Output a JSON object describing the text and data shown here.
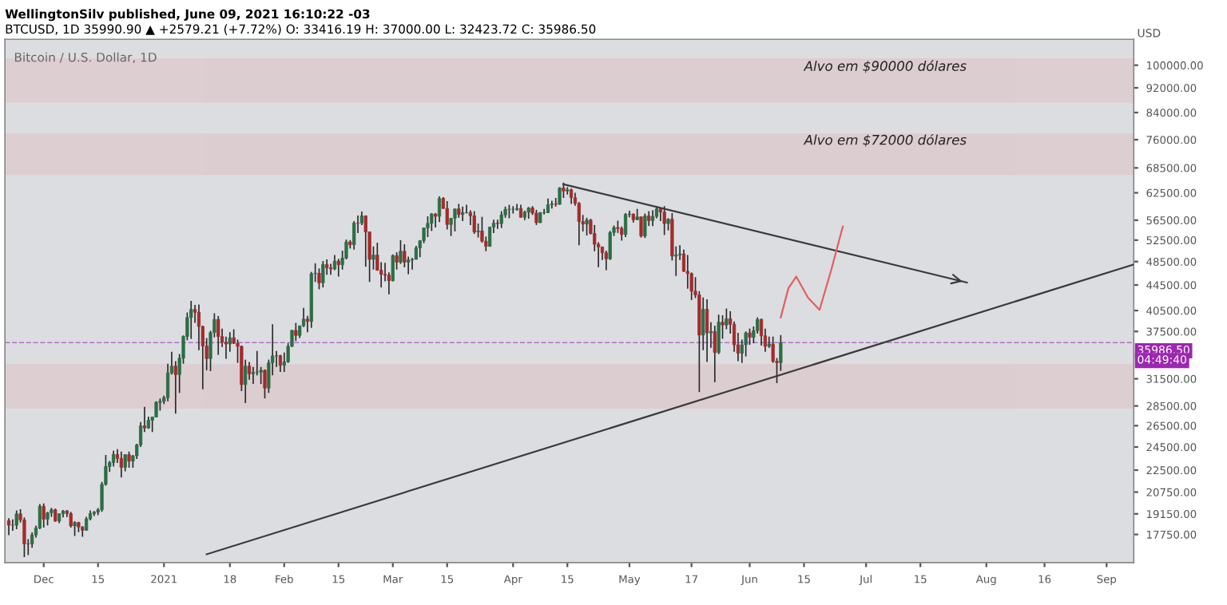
{
  "chart_data": {
    "type": "candlestick",
    "title": "Bitcoin / U.S. Dollar, 1D",
    "ylabel": "USD",
    "annotations": [
      "WellingtonSilv published, June 09, 2021 16:10:22 -03",
      "BTCUSD, 1D 35990.90 ▲ +2579.21 (+7.72%) O: 33416.19 H: 37000.00 L: 32423.72 C: 35986.50",
      "04:49:40"
    ],
    "x": [
      "2020-11-22",
      "2020-11-23",
      "2020-11-24",
      "2020-11-25",
      "2020-11-26",
      "2020-11-27",
      "2020-11-28",
      "2020-11-29",
      "2020-11-30",
      "2020-12-01",
      "2020-12-02",
      "2020-12-03",
      "2020-12-04",
      "2020-12-05",
      "2020-12-06",
      "2020-12-07",
      "2020-12-08",
      "2020-12-09",
      "2020-12-10",
      "2020-12-11",
      "2020-12-12",
      "2020-12-13",
      "2020-12-14",
      "2020-12-15",
      "2020-12-16",
      "2020-12-17",
      "2020-12-18",
      "2020-12-19",
      "2020-12-20",
      "2020-12-21",
      "2020-12-22",
      "2020-12-23",
      "2020-12-24",
      "2020-12-25",
      "2020-12-26",
      "2020-12-27",
      "2020-12-28",
      "2020-12-29",
      "2020-12-30",
      "2020-12-31",
      "2021-01-01",
      "2021-01-02",
      "2021-01-03",
      "2021-01-04",
      "2021-01-05",
      "2021-01-06",
      "2021-01-07",
      "2021-01-08",
      "2021-01-09",
      "2021-01-10",
      "2021-01-11",
      "2021-01-12",
      "2021-01-13",
      "2021-01-14",
      "2021-01-15",
      "2021-01-16",
      "2021-01-17",
      "2021-01-18",
      "2021-01-19",
      "2021-01-20",
      "2021-01-21",
      "2021-01-22",
      "2021-01-23",
      "2021-01-24",
      "2021-01-25",
      "2021-01-26",
      "2021-01-27",
      "2021-01-28",
      "2021-01-29",
      "2021-01-30",
      "2021-01-31",
      "2021-02-01",
      "2021-02-02",
      "2021-02-03",
      "2021-02-04",
      "2021-02-05",
      "2021-02-06",
      "2021-02-07",
      "2021-02-08",
      "2021-02-09",
      "2021-02-10",
      "2021-02-11",
      "2021-02-12",
      "2021-02-13",
      "2021-02-14",
      "2021-02-15",
      "2021-02-16",
      "2021-02-17",
      "2021-02-18",
      "2021-02-19",
      "2021-02-20",
      "2021-02-21",
      "2021-02-22",
      "2021-02-23",
      "2021-02-24",
      "2021-02-25",
      "2021-02-26",
      "2021-02-27",
      "2021-02-28",
      "2021-03-01",
      "2021-03-02",
      "2021-03-03",
      "2021-03-04",
      "2021-03-05",
      "2021-03-06",
      "2021-03-07",
      "2021-03-08",
      "2021-03-09",
      "2021-03-10",
      "2021-03-11",
      "2021-03-12",
      "2021-03-13",
      "2021-03-14",
      "2021-03-15",
      "2021-03-16",
      "2021-03-17",
      "2021-03-18",
      "2021-03-19",
      "2021-03-20",
      "2021-03-21",
      "2021-03-22",
      "2021-03-23",
      "2021-03-24",
      "2021-03-25",
      "2021-03-26",
      "2021-03-27",
      "2021-03-28",
      "2021-03-29",
      "2021-03-30",
      "2021-03-31",
      "2021-04-01",
      "2021-04-02",
      "2021-04-03",
      "2021-04-04",
      "2021-04-05",
      "2021-04-06",
      "2021-04-07",
      "2021-04-08",
      "2021-04-09",
      "2021-04-10",
      "2021-04-11",
      "2021-04-12",
      "2021-04-13",
      "2021-04-14",
      "2021-04-15",
      "2021-04-16",
      "2021-04-17",
      "2021-04-18",
      "2021-04-19",
      "2021-04-20",
      "2021-04-21",
      "2021-04-22",
      "2021-04-23",
      "2021-04-24",
      "2021-04-25",
      "2021-04-26",
      "2021-04-27",
      "2021-04-28",
      "2021-04-29",
      "2021-04-30",
      "2021-05-01",
      "2021-05-02",
      "2021-05-03",
      "2021-05-04",
      "2021-05-05",
      "2021-05-06",
      "2021-05-07",
      "2021-05-08",
      "2021-05-09",
      "2021-05-10",
      "2021-05-11",
      "2021-05-12",
      "2021-05-13",
      "2021-05-14",
      "2021-05-15",
      "2021-05-16",
      "2021-05-17",
      "2021-05-18",
      "2021-05-19",
      "2021-05-20",
      "2021-05-21",
      "2021-05-22",
      "2021-05-23",
      "2021-05-24",
      "2021-05-25",
      "2021-05-26",
      "2021-05-27",
      "2021-05-28",
      "2021-05-29",
      "2021-05-30",
      "2021-05-31",
      "2021-06-01",
      "2021-06-02",
      "2021-06-03",
      "2021-06-04",
      "2021-06-05",
      "2021-06-06",
      "2021-06-07",
      "2021-06-08",
      "2021-06-09"
    ],
    "ohlc": [
      [
        18680,
        18850,
        17700,
        18370
      ],
      [
        18370,
        18760,
        18000,
        18370
      ],
      [
        18370,
        19400,
        18100,
        19150
      ],
      [
        19150,
        19480,
        18550,
        18730
      ],
      [
        18730,
        18900,
        16330,
        17150
      ],
      [
        17150,
        17450,
        16450,
        17140
      ],
      [
        17140,
        17890,
        16900,
        17720
      ],
      [
        17720,
        18340,
        17550,
        18180
      ],
      [
        18180,
        19850,
        18100,
        19700
      ],
      [
        19700,
        19900,
        18200,
        18780
      ],
      [
        18780,
        19300,
        18350,
        19220
      ],
      [
        19220,
        19580,
        18950,
        19440
      ],
      [
        19440,
        19520,
        18600,
        18650
      ],
      [
        18650,
        19180,
        18500,
        19150
      ],
      [
        19150,
        19420,
        18900,
        19360
      ],
      [
        19360,
        19420,
        18930,
        19170
      ],
      [
        19170,
        19300,
        18200,
        18320
      ],
      [
        18320,
        18640,
        17650,
        18550
      ],
      [
        18550,
        18600,
        17900,
        18250
      ],
      [
        18250,
        18300,
        17600,
        18030
      ],
      [
        18030,
        18950,
        18000,
        18800
      ],
      [
        18800,
        19400,
        18700,
        19170
      ],
      [
        19170,
        19350,
        19000,
        19270
      ],
      [
        19270,
        19560,
        19050,
        19440
      ],
      [
        19440,
        21550,
        19300,
        21350
      ],
      [
        21350,
        23800,
        21250,
        22800
      ],
      [
        22800,
        23280,
        22350,
        23130
      ],
      [
        23130,
        24170,
        22800,
        23840
      ],
      [
        23840,
        24300,
        23100,
        23480
      ],
      [
        23480,
        24100,
        21900,
        22730
      ],
      [
        22730,
        23840,
        22400,
        23820
      ],
      [
        23820,
        24100,
        22700,
        23250
      ],
      [
        23250,
        23800,
        22700,
        23720
      ],
      [
        23720,
        24790,
        23450,
        24690
      ],
      [
        24690,
        26870,
        24500,
        26490
      ],
      [
        26490,
        28400,
        25900,
        26280
      ],
      [
        26280,
        27400,
        26200,
        27030
      ],
      [
        27030,
        27400,
        25900,
        27360
      ],
      [
        27360,
        28990,
        27340,
        28880
      ],
      [
        28880,
        29300,
        28000,
        28990
      ],
      [
        28990,
        29600,
        28700,
        29380
      ],
      [
        29380,
        33300,
        29000,
        32200
      ],
      [
        32200,
        34800,
        32000,
        33000
      ],
      [
        33000,
        33600,
        27700,
        31990
      ],
      [
        31990,
        34500,
        29900,
        33990
      ],
      [
        33990,
        36950,
        33300,
        36820
      ],
      [
        36820,
        40200,
        36300,
        39470
      ],
      [
        39470,
        41950,
        36500,
        40670
      ],
      [
        40670,
        41350,
        38700,
        40240
      ],
      [
        40240,
        41400,
        35000,
        38200
      ],
      [
        38200,
        38300,
        30300,
        35550
      ],
      [
        35550,
        36600,
        32500,
        33920
      ],
      [
        33920,
        37600,
        32400,
        37340
      ],
      [
        37340,
        40100,
        36700,
        39200
      ],
      [
        39200,
        39700,
        34400,
        36800
      ],
      [
        36800,
        37900,
        35400,
        36030
      ],
      [
        36030,
        36800,
        33900,
        35800
      ],
      [
        35800,
        37400,
        34800,
        36640
      ],
      [
        36640,
        37800,
        35800,
        35900
      ],
      [
        35900,
        36400,
        33400,
        35500
      ],
      [
        35500,
        35600,
        30100,
        30830
      ],
      [
        30830,
        33800,
        28800,
        33000
      ],
      [
        33000,
        33500,
        31400,
        32080
      ],
      [
        32080,
        32900,
        30900,
        32270
      ],
      [
        32270,
        34900,
        31900,
        32280
      ],
      [
        32280,
        32900,
        30900,
        32500
      ],
      [
        32500,
        32600,
        29300,
        30430
      ],
      [
        30430,
        33800,
        29900,
        33400
      ],
      [
        33400,
        38500,
        31900,
        34270
      ],
      [
        34270,
        34900,
        32900,
        34300
      ],
      [
        34300,
        34400,
        32300,
        33100
      ],
      [
        33100,
        34700,
        32300,
        33540
      ],
      [
        33540,
        35900,
        33400,
        35500
      ],
      [
        35500,
        37700,
        35400,
        37650
      ],
      [
        37650,
        38700,
        36200,
        36950
      ],
      [
        36950,
        38300,
        36600,
        38290
      ],
      [
        38290,
        40900,
        38100,
        39250
      ],
      [
        39250,
        39700,
        37400,
        38900
      ],
      [
        38900,
        46700,
        38000,
        46400
      ],
      [
        46400,
        48200,
        45000,
        46480
      ],
      [
        46480,
        47300,
        43800,
        44840
      ],
      [
        44840,
        48600,
        44100,
        47980
      ],
      [
        47980,
        48900,
        46200,
        47400
      ],
      [
        47400,
        48100,
        46200,
        47200
      ],
      [
        47200,
        49700,
        47000,
        48600
      ],
      [
        48600,
        49000,
        45900,
        47950
      ],
      [
        47950,
        50500,
        47100,
        49150
      ],
      [
        49150,
        52600,
        48900,
        52150
      ],
      [
        52150,
        52500,
        50900,
        51600
      ],
      [
        51600,
        56300,
        50700,
        55900
      ],
      [
        55900,
        57500,
        53900,
        55880
      ],
      [
        55880,
        58350,
        55500,
        57400
      ],
      [
        57400,
        57500,
        47600,
        54100
      ],
      [
        54100,
        54200,
        45000,
        48900
      ],
      [
        48900,
        51300,
        47100,
        49700
      ],
      [
        49700,
        52000,
        46900,
        47000
      ],
      [
        47000,
        48400,
        44100,
        46300
      ],
      [
        46300,
        48300,
        45100,
        46150
      ],
      [
        46150,
        46600,
        43000,
        45200
      ],
      [
        45200,
        49800,
        45100,
        49600
      ],
      [
        49600,
        50200,
        47100,
        48400
      ],
      [
        48400,
        52500,
        48100,
        50400
      ],
      [
        50400,
        51700,
        47500,
        48400
      ],
      [
        48400,
        49400,
        46300,
        48800
      ],
      [
        48800,
        49200,
        47100,
        48900
      ],
      [
        48900,
        51400,
        48900,
        51000
      ],
      [
        51000,
        52400,
        49300,
        52400
      ],
      [
        52400,
        54900,
        51900,
        54900
      ],
      [
        54900,
        57300,
        53100,
        55850
      ],
      [
        55850,
        58000,
        54300,
        57800
      ],
      [
        57800,
        58000,
        55000,
        57300
      ],
      [
        57300,
        61700,
        56100,
        61200
      ],
      [
        61200,
        61500,
        58900,
        59000
      ],
      [
        59000,
        60600,
        54600,
        55600
      ],
      [
        55600,
        56900,
        53300,
        56900
      ],
      [
        56900,
        58900,
        54200,
        58900
      ],
      [
        58900,
        60000,
        57000,
        57700
      ],
      [
        57700,
        59400,
        56300,
        58100
      ],
      [
        58100,
        59800,
        57900,
        58100
      ],
      [
        58100,
        58600,
        55500,
        57400
      ],
      [
        57400,
        58400,
        53700,
        54100
      ],
      [
        54100,
        55800,
        53000,
        54300
      ],
      [
        54300,
        57200,
        52000,
        52300
      ],
      [
        52300,
        53200,
        50400,
        51300
      ],
      [
        51300,
        55100,
        51300,
        55100
      ],
      [
        55100,
        56600,
        53900,
        55900
      ],
      [
        55900,
        56600,
        54700,
        55800
      ],
      [
        55800,
        58400,
        54900,
        57600
      ],
      [
        57600,
        59400,
        57000,
        58800
      ],
      [
        58800,
        59800,
        56900,
        58800
      ],
      [
        58800,
        59500,
        57900,
        58800
      ],
      [
        58800,
        60000,
        58500,
        59000
      ],
      [
        59000,
        59800,
        57000,
        57100
      ],
      [
        57100,
        58500,
        56500,
        58200
      ],
      [
        58200,
        59300,
        56800,
        59100
      ],
      [
        59100,
        59500,
        57600,
        58000
      ],
      [
        58000,
        58700,
        55500,
        56000
      ],
      [
        56000,
        58200,
        55900,
        58100
      ],
      [
        58100,
        58900,
        57700,
        58100
      ],
      [
        58100,
        61200,
        58000,
        59800
      ],
      [
        59800,
        60700,
        59000,
        60000
      ],
      [
        60000,
        61300,
        59400,
        59900
      ],
      [
        59900,
        63800,
        59800,
        63600
      ],
      [
        63600,
        64900,
        61300,
        62900
      ],
      [
        62900,
        63800,
        62100,
        63200
      ],
      [
        63200,
        63500,
        60000,
        61400
      ],
      [
        61400,
        62500,
        59600,
        60100
      ],
      [
        60100,
        60400,
        51500,
        56200
      ],
      [
        56200,
        57600,
        54200,
        55700
      ],
      [
        55700,
        57000,
        53400,
        56500
      ],
      [
        56500,
        56800,
        53600,
        53800
      ],
      [
        53800,
        55500,
        50400,
        51700
      ],
      [
        51700,
        52100,
        47500,
        51200
      ],
      [
        51200,
        51200,
        48800,
        50100
      ],
      [
        50100,
        50500,
        47000,
        49000
      ],
      [
        49000,
        54300,
        48800,
        54000
      ],
      [
        54000,
        55400,
        53300,
        55000
      ],
      [
        55000,
        56400,
        53900,
        54800
      ],
      [
        54800,
        55200,
        52400,
        53600
      ],
      [
        53600,
        58000,
        53100,
        57700
      ],
      [
        57700,
        58500,
        57100,
        57800
      ],
      [
        57800,
        57900,
        56000,
        56600
      ],
      [
        56600,
        58900,
        56500,
        57200
      ],
      [
        57200,
        57200,
        53000,
        53300
      ],
      [
        53300,
        57900,
        52900,
        57400
      ],
      [
        57400,
        58400,
        55300,
        56400
      ],
      [
        56400,
        58600,
        55300,
        57300
      ],
      [
        57300,
        59500,
        56900,
        58900
      ],
      [
        58900,
        59200,
        56300,
        58200
      ],
      [
        58200,
        59500,
        53500,
        55800
      ],
      [
        55800,
        56900,
        54400,
        56700
      ],
      [
        56700,
        58000,
        48700,
        49500
      ],
      [
        49500,
        51300,
        46000,
        49700
      ],
      [
        49700,
        51500,
        48800,
        49900
      ],
      [
        49900,
        50700,
        46700,
        46800
      ],
      [
        46800,
        49700,
        43900,
        46400
      ],
      [
        46400,
        46600,
        42100,
        43500
      ],
      [
        43500,
        45800,
        42400,
        42900
      ],
      [
        42900,
        43500,
        30000,
        37000
      ],
      [
        37000,
        42500,
        35000,
        40700
      ],
      [
        40700,
        42200,
        33500,
        37300
      ],
      [
        37300,
        38800,
        35300,
        37500
      ],
      [
        37500,
        38300,
        31100,
        34700
      ],
      [
        34700,
        39900,
        34500,
        38800
      ],
      [
        38800,
        39800,
        36500,
        38400
      ],
      [
        38400,
        40800,
        37800,
        39300
      ],
      [
        39300,
        40400,
        37200,
        38500
      ],
      [
        38500,
        38900,
        34800,
        35700
      ],
      [
        35700,
        37300,
        33600,
        34600
      ],
      [
        34600,
        36400,
        33400,
        35700
      ],
      [
        35700,
        37500,
        34200,
        37300
      ],
      [
        37300,
        37900,
        35700,
        36700
      ],
      [
        36700,
        38200,
        35900,
        37600
      ],
      [
        37600,
        39500,
        37200,
        39200
      ],
      [
        39200,
        39300,
        35600,
        36900
      ],
      [
        36900,
        37900,
        34800,
        35500
      ],
      [
        35500,
        36800,
        35300,
        35800
      ],
      [
        35800,
        36800,
        33400,
        33600
      ],
      [
        33600,
        34000,
        31000,
        33416.19
      ],
      [
        33416.19,
        37000,
        32423.72,
        35986.5
      ]
    ],
    "colors": [
      "#a32b2b",
      "#2b6e45",
      "#2b6e45",
      "#a32b2b",
      "#a32b2b",
      "#a32b2b",
      "#2b6e45",
      "#2b6e45",
      "#2b6e45",
      "#a32b2b",
      "#2b6e45",
      "#2b6e45",
      "#a32b2b",
      "#2b6e45",
      "#2b6e45",
      "#a32b2b",
      "#a32b2b",
      "#2b6e45",
      "#a32b2b",
      "#a32b2b",
      "#2b6e45",
      "#2b6e45",
      "#2b6e45",
      "#2b6e45",
      "#2b6e45",
      "#2b6e45",
      "#2b6e45",
      "#2b6e45",
      "#a32b2b",
      "#a32b2b",
      "#2b6e45",
      "#a32b2b",
      "#2b6e45",
      "#2b6e45",
      "#2b6e45",
      "#a32b2b",
      "#2b6e45",
      "#2b6e45",
      "#2b6e45",
      "#2b6e45",
      "#2b6e45",
      "#2b6e45",
      "#2b6e45",
      "#a32b2b",
      "#2b6e45",
      "#2b6e45",
      "#2b6e45",
      "#2b6e45",
      "#a32b2b",
      "#a32b2b",
      "#a32b2b",
      "#a32b2b",
      "#2b6e45",
      "#2b6e45",
      "#a32b2b",
      "#a32b2b",
      "#a32b2b",
      "#2b6e45",
      "#a32b2b",
      "#a32b2b",
      "#a32b2b",
      "#2b6e45",
      "#a32b2b",
      "#2b6e45",
      "#2b6e45",
      "#2b6e45",
      "#a32b2b",
      "#2b6e45",
      "#2b6e45",
      "#2b6e45",
      "#a32b2b",
      "#2b6e45",
      "#2b6e45",
      "#2b6e45",
      "#a32b2b",
      "#2b6e45",
      "#2b6e45",
      "#a32b2b",
      "#2b6e45",
      "#2b6e45",
      "#a32b2b",
      "#2b6e45",
      "#a32b2b",
      "#a32b2b",
      "#2b6e45",
      "#a32b2b",
      "#2b6e45",
      "#2b6e45",
      "#a32b2b",
      "#2b6e45",
      "#a32b2b",
      "#2b6e45",
      "#a32b2b",
      "#a32b2b",
      "#2b6e45",
      "#a32b2b",
      "#a32b2b",
      "#a32b2b",
      "#a32b2b",
      "#2b6e45",
      "#a32b2b",
      "#2b6e45",
      "#a32b2b",
      "#2b6e45",
      "#2b6e45",
      "#2b6e45",
      "#2b6e45",
      "#2b6e45",
      "#2b6e45",
      "#2b6e45",
      "#a32b2b",
      "#2b6e45",
      "#a32b2b",
      "#a32b2b",
      "#2b6e45",
      "#2b6e45",
      "#a32b2b",
      "#2b6e45",
      "#2b6e45",
      "#a32b2b",
      "#a32b2b",
      "#2b6e45",
      "#a32b2b",
      "#a32b2b",
      "#2b6e45",
      "#2b6e45",
      "#a32b2b",
      "#2b6e45",
      "#2b6e45",
      "#2b6e45",
      "#2b6e45",
      "#2b6e45",
      "#a32b2b",
      "#2b6e45",
      "#2b6e45",
      "#a32b2b",
      "#a32b2b",
      "#2b6e45",
      "#2b6e45",
      "#2b6e45",
      "#2b6e45",
      "#a32b2b",
      "#2b6e45",
      "#a32b2b",
      "#2b6e45",
      "#a32b2b",
      "#a32b2b",
      "#a32b2b",
      "#a32b2b",
      "#2b6e45",
      "#a32b2b",
      "#a32b2b",
      "#a32b2b",
      "#a32b2b",
      "#a32b2b",
      "#2b6e45",
      "#2b6e45",
      "#a32b2b",
      "#a32b2b",
      "#2b6e45",
      "#2b6e45",
      "#a32b2b",
      "#2b6e45",
      "#a32b2b",
      "#2b6e45",
      "#a32b2b",
      "#2b6e45",
      "#2b6e45",
      "#a32b2b",
      "#a32b2b",
      "#2b6e45",
      "#a32b2b",
      "#2b6e45",
      "#2b6e45",
      "#a32b2b",
      "#a32b2b",
      "#a32b2b",
      "#a32b2b",
      "#a32b2b",
      "#2b6e45",
      "#a32b2b",
      "#2b6e45",
      "#a32b2b",
      "#2b6e45",
      "#a32b2b",
      "#2b6e45",
      "#a32b2b",
      "#a32b2b",
      "#a32b2b",
      "#2b6e45",
      "#2b6e45",
      "#a32b2b",
      "#2b6e45",
      "#2b6e45",
      "#a32b2b",
      "#a32b2b",
      "#2b6e45",
      "#a32b2b",
      "#a32b2b",
      "#2b6e45"
    ],
    "series": [
      {
        "type": "line",
        "color": "#3a3a3a",
        "x": [
          "2021-04-14",
          "2021-07-27"
        ],
        "values": [
          64500,
          44900
        ]
      },
      {
        "type": "line",
        "color": "#3a3a3a",
        "x": [
          "2021-01-12",
          "2021-09-08"
        ],
        "values": [
          16500,
          48000
        ]
      },
      {
        "type": "line",
        "color": "#e06060",
        "x": [
          "2021-06-09",
          "2021-06-11",
          "2021-06-13",
          "2021-06-16",
          "2021-06-19",
          "2021-06-22",
          "2021-06-25"
        ],
        "values": [
          39500,
          44000,
          45900,
          42500,
          40600,
          47000,
          55200
        ]
      }
    ],
    "bands": [
      {
        "axis": "y",
        "from": 28330,
        "to": 33100,
        "color": "#e06060"
      },
      {
        "axis": "y",
        "from": 67000,
        "to": 77450,
        "label": "Alvo em $72000 dólares",
        "color": "#e06060"
      },
      {
        "axis": "y",
        "from": 87500,
        "to": 102200,
        "label": "Alvo em $90000 dólares",
        "color": "#e06060"
      }
    ],
    "ref_lines": [
      {
        "axis": "y",
        "value": 35986.5,
        "label": "35986.50",
        "color": "#9c27b0",
        "line_style": "dashed"
      }
    ],
    "log": "y",
    "grid": false,
    "xlim": [
      "2020-11-21",
      "2021-09-08"
    ],
    "xticks": [
      {
        "value": "2020-12-01",
        "label": "Dec"
      },
      {
        "value": "2020-12-15",
        "label": "15"
      },
      {
        "value": "2021-01-01",
        "label": "2021"
      },
      {
        "value": "2021-01-18",
        "label": "18"
      },
      {
        "value": "2021-02-01",
        "label": "Feb"
      },
      {
        "value": "2021-02-15",
        "label": "15"
      },
      {
        "value": "2021-03-01",
        "label": "Mar"
      },
      {
        "value": "2021-03-15",
        "label": "15"
      },
      {
        "value": "2021-04-01",
        "label": "Apr"
      },
      {
        "value": "2021-04-15",
        "label": "15"
      },
      {
        "value": "2021-05-01",
        "label": "May"
      },
      {
        "value": "2021-05-17",
        "label": "17"
      },
      {
        "value": "2021-06-01",
        "label": "Jun"
      },
      {
        "value": "2021-06-15",
        "label": "15"
      },
      {
        "value": "2021-07-01",
        "label": "Jul"
      },
      {
        "value": "2021-07-15",
        "label": "15"
      },
      {
        "value": "2021-08-01",
        "label": "Aug"
      },
      {
        "value": "2021-08-16",
        "label": "16"
      },
      {
        "value": "2021-09-01",
        "label": "Sep"
      }
    ],
    "ylim": [
      16000,
      110000
    ],
    "yticks": [
      {
        "value": 17750,
        "label": "17750.00"
      },
      {
        "value": 19150,
        "label": "19150.00"
      },
      {
        "value": 20750,
        "label": "20750.00"
      },
      {
        "value": 22500,
        "label": "22500.00"
      },
      {
        "value": 24500,
        "label": "24500.00"
      },
      {
        "value": 26500,
        "label": "26500.00"
      },
      {
        "value": 28500,
        "label": "28500.00"
      },
      {
        "value": 31500,
        "label": "31500.00"
      },
      {
        "value": 37500,
        "label": "37500.00"
      },
      {
        "value": 40500,
        "label": "40500.00"
      },
      {
        "value": 44500,
        "label": "44500.00"
      },
      {
        "value": 48500,
        "label": "48500.00"
      },
      {
        "value": 52500,
        "label": "52500.00"
      },
      {
        "value": 56500,
        "label": "56500.00"
      },
      {
        "value": 62500,
        "label": "62500.00"
      },
      {
        "value": 68500,
        "label": "68500.00"
      },
      {
        "value": 76000,
        "label": "76000.00"
      },
      {
        "value": 84000,
        "label": "84000.00"
      },
      {
        "value": 92000,
        "label": "92000.00"
      },
      {
        "value": 100000,
        "label": "100000.00"
      }
    ]
  }
}
